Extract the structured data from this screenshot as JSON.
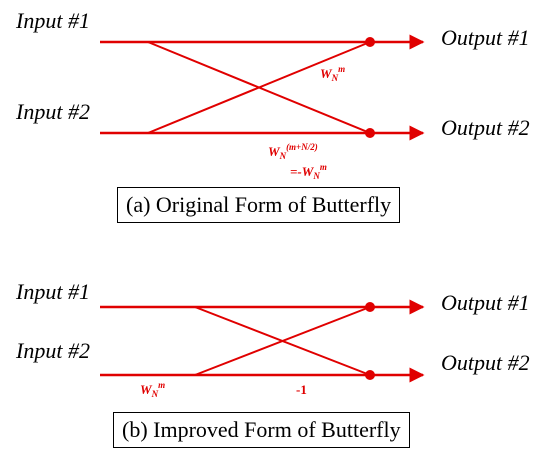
{
  "colors": {
    "line": "#e00000",
    "text": "#000000",
    "twiddle": "#e00000"
  },
  "diagram_a": {
    "input1": "Input #1",
    "input2": "Input #2",
    "output1": "Output #1",
    "output2": "Output #2",
    "twiddle_upper": {
      "base": "W",
      "sub": "N",
      "sup": "m"
    },
    "twiddle_lower": {
      "base": "W",
      "sub": "N",
      "sup": "(m+N/2)"
    },
    "twiddle_lower_eq_prefix": "=",
    "twiddle_lower_eq": {
      "base": "-W",
      "sub": "N",
      "sup": "m"
    },
    "caption": "(a) Original Form of Butterfly"
  },
  "diagram_b": {
    "input1": "Input #1",
    "input2": "Input #2",
    "output1": "Output #1",
    "output2": "Output #2",
    "twiddle_input": {
      "base": "W",
      "sub": "N",
      "sup": "m"
    },
    "minus_one": "-1",
    "caption": "(b) Improved Form of Butterfly"
  }
}
